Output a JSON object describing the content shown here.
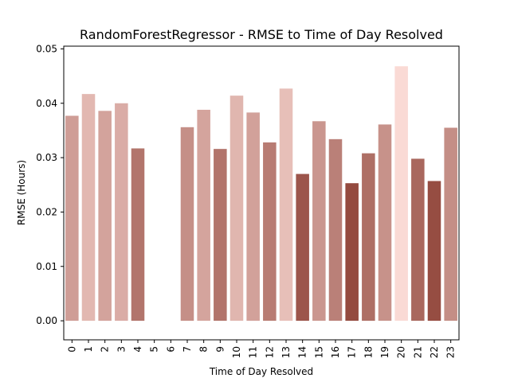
{
  "chart_data": {
    "type": "bar",
    "title": "RandomForestRegressor - RMSE to Time of Day Resolved",
    "xlabel": "Time of Day Resolved",
    "ylabel": "RMSE (Hours)",
    "ylim": [
      -0.0035,
      0.0505
    ],
    "yticks": [
      "0.00",
      "0.01",
      "0.02",
      "0.03",
      "0.04",
      "0.05"
    ],
    "categories": [
      "0",
      "1",
      "2",
      "3",
      "4",
      "5",
      "6",
      "7",
      "8",
      "9",
      "10",
      "11",
      "12",
      "13",
      "14",
      "15",
      "16",
      "17",
      "18",
      "19",
      "20",
      "21",
      "22",
      "23"
    ],
    "values": [
      0.0377,
      0.0417,
      0.0386,
      0.04,
      0.0317,
      null,
      null,
      0.0356,
      0.0388,
      0.0316,
      0.0414,
      0.0383,
      0.0328,
      0.0427,
      0.027,
      0.0367,
      0.0334,
      0.0253,
      0.0308,
      0.0361,
      0.0468,
      0.0298,
      0.0257,
      0.0355
    ],
    "grid": false,
    "legend": "none",
    "color_dark": "#944a3f",
    "color_light": "#fadad5"
  }
}
